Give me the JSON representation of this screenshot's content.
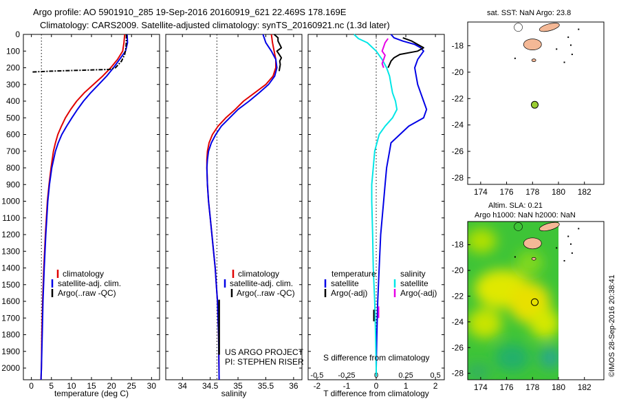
{
  "header": {
    "line1": "Argo profile: AO 5901910_285 19-Sep-2016 20160919_621 22.469S 178.169E",
    "line2": "Climatology: CARS2009. Satellite-adjusted climatology: synTS_20160921.nc (1.3d later)"
  },
  "sst_title": "sat. SST: NaN Argo: 23.8",
  "sla_title1": "Altim. SLA: 0.21",
  "sla_title2": "Argo h1000: NaN h2000: NaN",
  "watermark": "©IMOS 28-Sep-2016 20:38:41",
  "project_line1": "US ARGO PROJECT",
  "project_line2": "PI: STEPHEN RISER",
  "colors": {
    "climatology": "#e00000",
    "satellite": "#0000e6",
    "argo": "#000000",
    "sal_satellite": "#00e6e6",
    "sal_argo": "#e600e6",
    "float_marker": "#9acd32"
  },
  "legend_temp": {
    "climatology": "climatology",
    "satellite": "satellite-adj. clim.",
    "argo": "Argo(..raw -QC)"
  },
  "legend_sal": {
    "climatology": "climatology",
    "satellite": "satellite-adj. clim.",
    "argo": "Argo(..raw -QC)"
  },
  "legend_diff": {
    "temp_header": "temperature",
    "sal_header": "salinity",
    "satellite": "satellite",
    "argo": "Argo(-adj)"
  },
  "chart_data": [
    {
      "type": "line",
      "xlabel": "temperature (deg C)",
      "xlim": [
        -2,
        32
      ],
      "ylim": [
        2070,
        0
      ],
      "x_ticks": [
        0,
        5,
        10,
        15,
        20,
        25,
        30
      ],
      "y_ticks": [
        0,
        100,
        200,
        300,
        400,
        500,
        600,
        700,
        800,
        900,
        1000,
        1100,
        1200,
        1300,
        1400,
        1500,
        1600,
        1700,
        1800,
        1900,
        2000
      ],
      "reference_x": 2.5,
      "series": [
        {
          "name": "climatology",
          "color": "#e00000",
          "depth": [
            0,
            50,
            100,
            150,
            200,
            250,
            300,
            350,
            400,
            450,
            500,
            550,
            600,
            650,
            700,
            800,
            900,
            1000,
            1200,
            1400,
            1600,
            1800,
            2000,
            2070
          ],
          "values": [
            23.3,
            23.1,
            22.8,
            21.5,
            19.8,
            17.8,
            15.5,
            13.2,
            11.3,
            9.8,
            8.5,
            7.5,
            6.6,
            6.0,
            5.5,
            4.9,
            4.4,
            4.0,
            3.5,
            3.1,
            2.8,
            2.6,
            2.5,
            2.4
          ]
        },
        {
          "name": "satellite-adj. clim.",
          "color": "#0000e6",
          "depth": [
            0,
            50,
            100,
            150,
            200,
            250,
            300,
            350,
            400,
            450,
            500,
            550,
            600,
            650,
            700,
            800,
            900,
            1000,
            1200,
            1400,
            1600,
            1800,
            2000,
            2070
          ],
          "values": [
            23.9,
            24.0,
            23.5,
            22.0,
            20.5,
            18.8,
            16.8,
            14.8,
            13.0,
            11.5,
            10.1,
            8.8,
            7.6,
            6.7,
            6.0,
            5.1,
            4.5,
            4.1,
            3.6,
            3.2,
            2.9,
            2.7,
            2.5,
            2.4
          ]
        },
        {
          "name": "Argo(..raw -QC)",
          "color": "#000000",
          "depth": [
            0,
            40,
            80,
            120,
            160,
            200,
            210,
            220,
            225
          ],
          "values": [
            23.7,
            23.7,
            23.6,
            23.3,
            22.5,
            21.0,
            19.5,
            5.0,
            0.3
          ]
        }
      ]
    },
    {
      "type": "line",
      "xlabel": "salinity",
      "xlim": [
        33.7,
        36.15
      ],
      "ylim": [
        2070,
        0
      ],
      "x_ticks": [
        34,
        34.5,
        35,
        35.5,
        36
      ],
      "reference_x": 34.62,
      "series": [
        {
          "name": "climatology",
          "color": "#e00000",
          "depth": [
            0,
            50,
            100,
            150,
            200,
            250,
            300,
            350,
            400,
            450,
            500,
            550,
            600,
            650,
            700,
            750,
            800,
            900,
            1000,
            1100,
            1200,
            1300,
            1400,
            1500,
            1600,
            1800,
            2070
          ],
          "values": [
            35.6,
            35.62,
            35.65,
            35.68,
            35.68,
            35.63,
            35.5,
            35.3,
            35.1,
            34.95,
            34.78,
            34.64,
            34.54,
            34.48,
            34.45,
            34.44,
            34.44,
            34.45,
            34.47,
            34.5,
            34.53,
            34.56,
            34.59,
            34.61,
            34.63,
            34.65,
            34.66
          ]
        },
        {
          "name": "satellite-adj. clim.",
          "color": "#0000e6",
          "depth": [
            0,
            50,
            100,
            150,
            200,
            250,
            300,
            350,
            400,
            450,
            500,
            550,
            600,
            650,
            700,
            750,
            800,
            900,
            1000,
            1100,
            1200,
            1300,
            1400,
            1500,
            1600,
            1800,
            2070
          ],
          "values": [
            35.45,
            35.5,
            35.6,
            35.68,
            35.7,
            35.66,
            35.55,
            35.38,
            35.2,
            35.0,
            34.85,
            34.7,
            34.6,
            34.52,
            34.47,
            34.45,
            34.44,
            34.45,
            34.47,
            34.5,
            34.53,
            34.56,
            34.59,
            34.61,
            34.63,
            34.65,
            34.66
          ]
        },
        {
          "name": "Argo(..raw -QC)",
          "color": "#000000",
          "depth": [
            0,
            20,
            40,
            60,
            80,
            100,
            120,
            140,
            160,
            180,
            200,
            220
          ],
          "values": [
            35.65,
            35.72,
            35.72,
            35.75,
            35.78,
            35.7,
            35.74,
            35.78,
            35.75,
            35.76,
            35.75,
            35.74
          ]
        }
      ]
    },
    {
      "type": "line",
      "xlabel": "T difference from climatology",
      "sublabel": "S difference from climatology",
      "xlim": [
        -2.3,
        2.3
      ],
      "ylim": [
        2070,
        0
      ],
      "x_ticks": [
        -2,
        -1,
        0,
        1,
        2
      ],
      "x_ticks_top": [
        "-0.5",
        "-0.25",
        "0",
        "0.25",
        "0.5"
      ],
      "reference_x": 0,
      "series": [
        {
          "name": "temperature satellite",
          "color": "#0000e6",
          "depth": [
            0,
            20,
            40,
            60,
            80,
            100,
            150,
            200,
            250,
            300,
            350,
            400,
            450,
            500,
            550,
            600,
            650,
            700,
            800,
            900,
            1000,
            1200,
            1400,
            1600,
            1800,
            2000,
            2050
          ],
          "values": [
            0.5,
            0.6,
            0.9,
            1.3,
            1.5,
            1.6,
            1.4,
            1.3,
            1.35,
            1.4,
            1.5,
            1.6,
            1.7,
            1.6,
            1.1,
            0.8,
            0.5,
            0.45,
            0.35,
            0.3,
            0.25,
            0.15,
            0.1,
            0.05,
            0.02,
            0.0,
            0.0
          ]
        },
        {
          "name": "temperature Argo(-adj)",
          "color": "#000000",
          "depth": [
            20,
            40,
            60,
            80,
            100,
            120,
            140,
            160,
            180,
            200
          ],
          "values": [
            0.9,
            1.2,
            1.4,
            1.6,
            1.4,
            0.8,
            0.6,
            0.5,
            0.45,
            0.4
          ]
        },
        {
          "name": "salinity satellite",
          "color": "#00e6e6",
          "depth": [
            0,
            25,
            50,
            100,
            150,
            200,
            250,
            300,
            350,
            400,
            450,
            500,
            550,
            600,
            700,
            800,
            900,
            1000,
            1200,
            1400,
            1600,
            1800,
            2000,
            2050
          ],
          "values": [
            -0.75,
            -0.6,
            -0.3,
            0.0,
            0.2,
            0.35,
            0.45,
            0.5,
            0.55,
            0.65,
            0.7,
            0.55,
            0.3,
            0.1,
            -0.05,
            -0.1,
            -0.15,
            -0.15,
            -0.12,
            -0.1,
            -0.05,
            -0.02,
            0.0,
            0.0
          ]
        },
        {
          "name": "salinity Argo(-adj)",
          "color": "#e600e6",
          "depth": [
            25,
            50,
            75,
            100,
            125,
            150,
            175,
            200
          ],
          "values": [
            0.4,
            0.3,
            0.25,
            0.2,
            0.3,
            0.25,
            0.2,
            0.25
          ]
        }
      ]
    },
    {
      "type": "scatter",
      "title": "sat. SST: NaN Argo: 23.8",
      "xlim": [
        173,
        183.5
      ],
      "ylim": [
        -28.5,
        -16.2
      ],
      "x_ticks": [
        174,
        176,
        178,
        180,
        182
      ],
      "y_ticks": [
        -18,
        -20,
        -22,
        -24,
        -26,
        -28
      ],
      "points": [
        {
          "lon": 178.17,
          "lat": -22.47
        }
      ]
    },
    {
      "type": "heatmap",
      "title": "Altim. SLA: 0.21 / Argo h1000: NaN h2000: NaN",
      "xlim": [
        173,
        183.5
      ],
      "ylim": [
        -28.5,
        -16.2
      ],
      "x_ticks": [
        174,
        176,
        178,
        180,
        182
      ],
      "y_ticks": [
        -18,
        -20,
        -22,
        -24,
        -26,
        -28
      ],
      "points": [
        {
          "lon": 178.17,
          "lat": -22.47
        }
      ]
    }
  ]
}
